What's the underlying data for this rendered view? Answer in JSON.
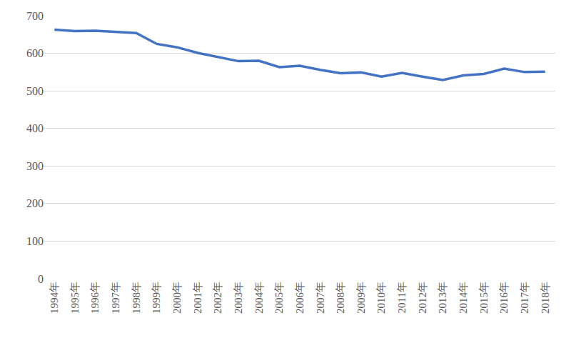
{
  "chart_data": {
    "type": "line",
    "categories": [
      "1994年",
      "1995年",
      "1996年",
      "1997年",
      "1998年",
      "1999年",
      "2000年",
      "2001年",
      "2002年",
      "2003年",
      "2004年",
      "2005年",
      "2006年",
      "2007年",
      "2008年",
      "2009年",
      "2010年",
      "2011年",
      "2012年",
      "2013年",
      "2014年",
      "2015年",
      "2016年",
      "2017年",
      "2018年"
    ],
    "values": [
      663,
      659,
      660,
      657,
      654,
      625,
      616,
      601,
      590,
      579,
      580,
      563,
      567,
      556,
      547,
      549,
      538,
      548,
      538,
      529,
      541,
      545,
      559,
      550,
      551
    ],
    "color": "#4472c4",
    "ylim": [
      0,
      700
    ],
    "yticks": [
      0,
      100,
      200,
      300,
      400,
      500,
      600,
      700
    ],
    "grid": true
  }
}
